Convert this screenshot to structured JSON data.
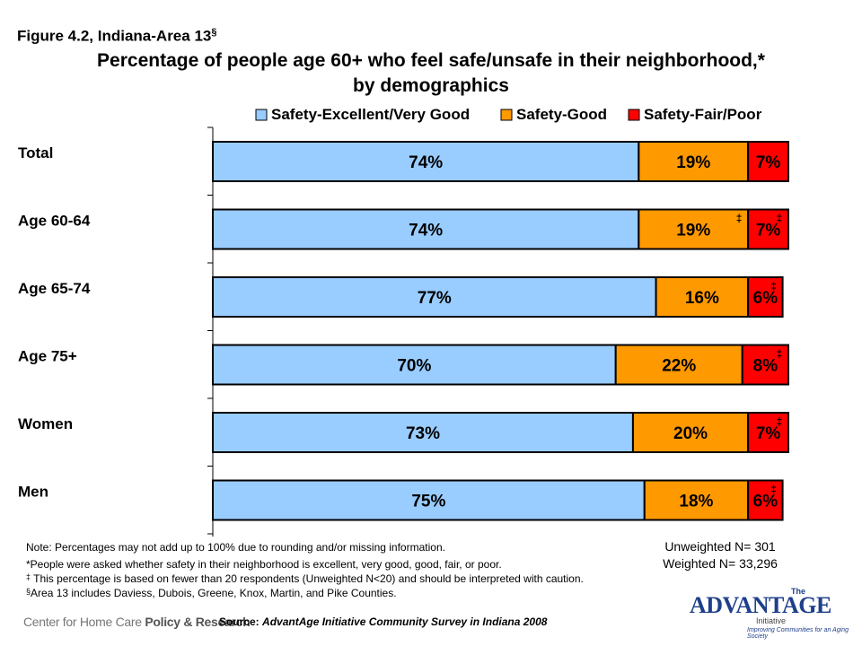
{
  "figure_label": "Figure 4.2, Indiana-Area 13",
  "figure_label_mark": "§",
  "title_line1": "Percentage of people age 60+ who feel safe/unsafe in their neighborhood,*",
  "title_line2": "by demographics",
  "chart_data": {
    "type": "bar",
    "orientation": "horizontal",
    "stacked": true,
    "categories": [
      "Total",
      "Age 60-64",
      "Age 65-74",
      "Age 75+",
      "Women",
      "Men"
    ],
    "series": [
      {
        "name": "Safety-Excellent/Very Good",
        "color": "#99ccff",
        "values": [
          74,
          74,
          77,
          70,
          73,
          75
        ],
        "labels": [
          "74%",
          "74%",
          "77%",
          "70%",
          "73%",
          "75%"
        ],
        "flags": [
          "",
          "",
          "",
          "",
          "",
          ""
        ]
      },
      {
        "name": "Safety-Good",
        "color": "#ff9900",
        "values": [
          19,
          19,
          16,
          22,
          20,
          18
        ],
        "labels": [
          "19%",
          "19%",
          "16%",
          "22%",
          "20%",
          "18%"
        ],
        "flags": [
          "",
          "‡",
          "",
          "",
          "",
          ""
        ]
      },
      {
        "name": "Safety-Fair/Poor",
        "color": "#ff0000",
        "values": [
          7,
          7,
          6,
          8,
          7,
          6
        ],
        "labels": [
          "7%",
          "7%",
          "6%",
          "8%",
          "7%",
          "6%"
        ],
        "flags": [
          "",
          "‡",
          "‡",
          "‡",
          "‡",
          "‡"
        ]
      }
    ],
    "xlim": [
      0,
      100
    ],
    "legend_position": "top",
    "grid": false
  },
  "notes": {
    "n1": "Note: Percentages may not add up to 100% due to rounding and/or missing information.",
    "n2": "*People were asked whether safety in their neighborhood is excellent, very good, good, fair, or poor.",
    "n3_mark": "‡",
    "n3": " This percentage is based on fewer than 20 respondents (Unweighted N<20) and should be interpreted with caution.",
    "n4_mark": "§",
    "n4": "Area 13 includes Daviess, Dubois, Greene, Knox, Martin, and Pike Counties."
  },
  "counts": {
    "unweighted": "Unweighted N= 301",
    "weighted": "Weighted N= 33,296"
  },
  "source": {
    "label": "Source:",
    "text": "AdvantAge Initiative Community Survey in Indiana 2008"
  },
  "footer_logo_left": {
    "part1": "Center for Home Care ",
    "part2": "Policy & Research"
  },
  "footer_logo_right": {
    "the": "The",
    "name": "ADVANTAGE",
    "initiative": "Initiative",
    "tagline": "Improving Communities for an Aging Society"
  }
}
